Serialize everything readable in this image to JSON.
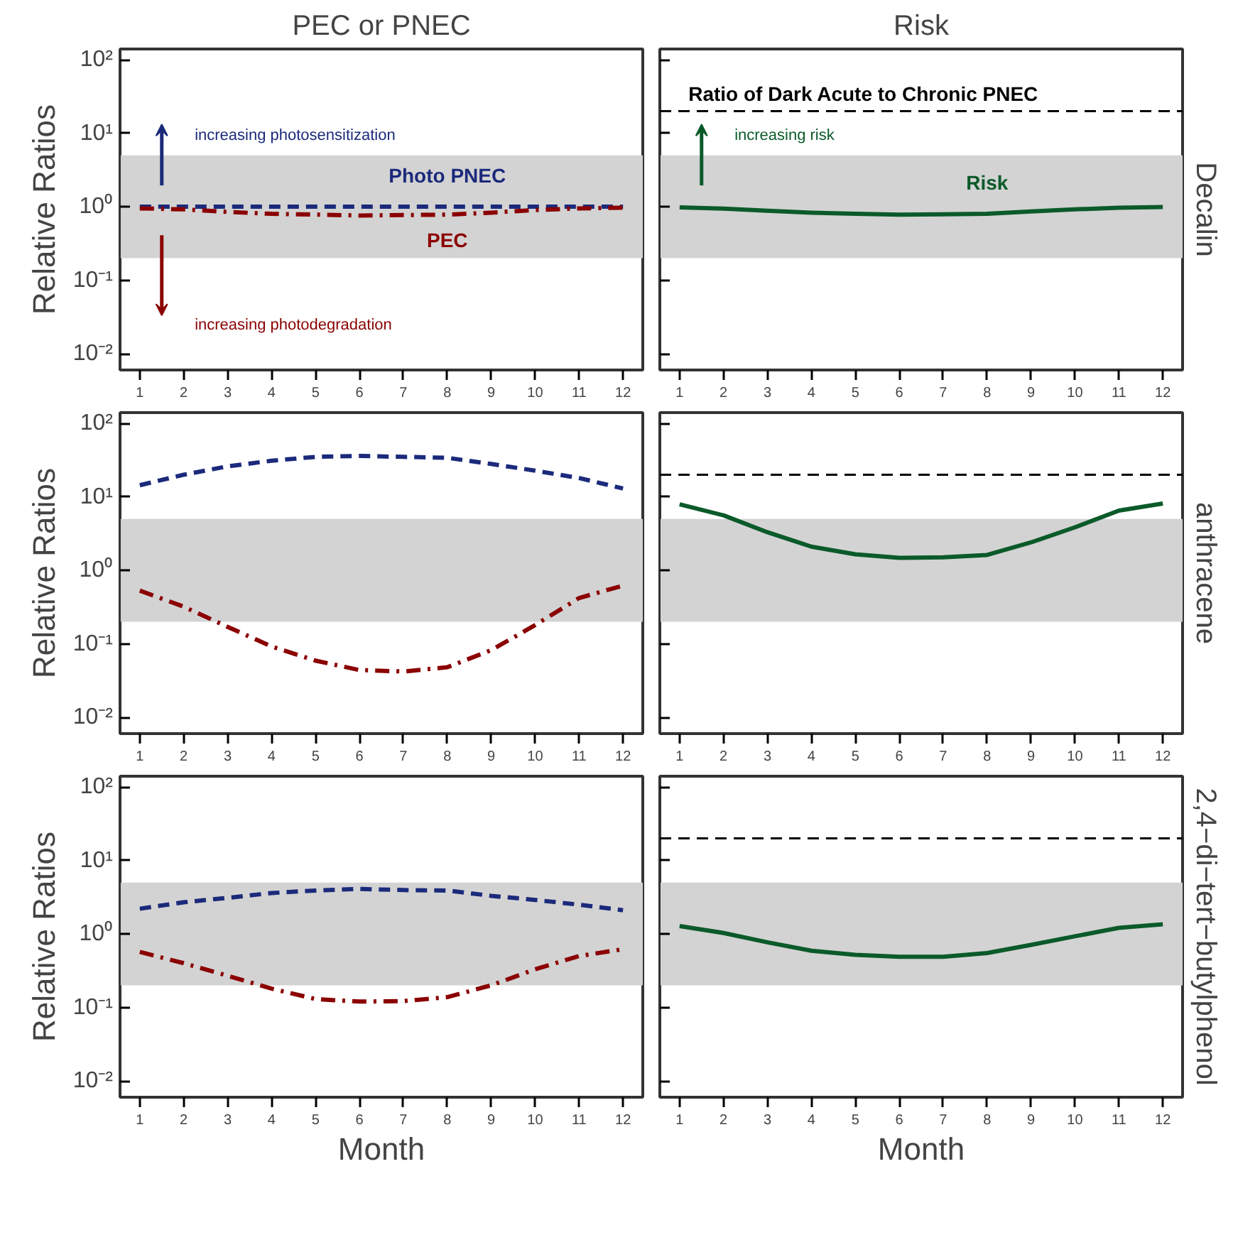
{
  "chart_data": [
    {
      "type": "line",
      "title": "PEC or PNEC",
      "ylabel": "Relative Ratios",
      "x": [
        1,
        2,
        3,
        4,
        5,
        6,
        7,
        8,
        9,
        10,
        11,
        12
      ],
      "log": "y",
      "xlim": [
        0.55,
        12.45
      ],
      "xticks": [
        1,
        2,
        3,
        4,
        5,
        6,
        7,
        8,
        9,
        10,
        11,
        12
      ],
      "ylim": [
        0.006,
        140
      ],
      "yticks": [
        {
          "value": 0.01,
          "label": "10⁻²"
        },
        {
          "value": 0.1,
          "label": "10⁻¹"
        },
        {
          "value": 1,
          "label": "10⁰"
        },
        {
          "value": 10,
          "label": "10¹"
        },
        {
          "value": 100,
          "label": "10²"
        }
      ],
      "bands": [
        {
          "axis": "y",
          "from": 0.2,
          "to": 5,
          "color": "#d3d3d3"
        }
      ],
      "annotations": [
        "increasing photosensitization",
        "increasing photodegradation"
      ],
      "series": [
        {
          "name": "Photo PNEC",
          "color": "#1b2a7b",
          "line_style": "dashed",
          "values": [
            1.0,
            1.0,
            1.0,
            1.0,
            1.0,
            1.0,
            1.0,
            1.0,
            1.0,
            1.0,
            1.0,
            1.0
          ]
        },
        {
          "name": "PEC",
          "color": "#8b0000",
          "line_style": "dashdot",
          "values": [
            0.95,
            0.92,
            0.85,
            0.8,
            0.78,
            0.76,
            0.77,
            0.78,
            0.83,
            0.9,
            0.95,
            0.97
          ]
        }
      ]
    },
    {
      "type": "line",
      "title": "Risk",
      "y2label": "Decalin",
      "x": [
        1,
        2,
        3,
        4,
        5,
        6,
        7,
        8,
        9,
        10,
        11,
        12
      ],
      "log": "y",
      "tick_labels": "x",
      "xlim": [
        0.55,
        12.45
      ],
      "xticks": [
        1,
        2,
        3,
        4,
        5,
        6,
        7,
        8,
        9,
        10,
        11,
        12
      ],
      "ylim": [
        0.006,
        140
      ],
      "yticks": [
        0.01,
        0.1,
        1,
        10,
        100
      ],
      "bands": [
        {
          "axis": "y",
          "from": 0.2,
          "to": 5,
          "color": "#d3d3d3"
        }
      ],
      "ref_lines": [
        {
          "axis": "y",
          "value": 20,
          "label": "Ratio of Dark Acute to Chronic PNEC",
          "color": "#000000",
          "line_style": "dashed"
        }
      ],
      "annotations": [
        "increasing risk"
      ],
      "series": [
        {
          "name": "Risk",
          "color": "#0b5a2a",
          "line_style": "solid",
          "values": [
            0.98,
            0.94,
            0.88,
            0.83,
            0.8,
            0.78,
            0.79,
            0.8,
            0.86,
            0.92,
            0.97,
            0.99
          ]
        }
      ]
    },
    {
      "type": "line",
      "ylabel": "Relative Ratios",
      "x": [
        1,
        2,
        3,
        4,
        5,
        6,
        7,
        8,
        9,
        10,
        11,
        12
      ],
      "log": "y",
      "xlim": [
        0.55,
        12.45
      ],
      "xticks": [
        1,
        2,
        3,
        4,
        5,
        6,
        7,
        8,
        9,
        10,
        11,
        12
      ],
      "ylim": [
        0.006,
        140
      ],
      "yticks": [
        {
          "value": 0.01,
          "label": "10⁻²"
        },
        {
          "value": 0.1,
          "label": "10⁻¹"
        },
        {
          "value": 1,
          "label": "10⁰"
        },
        {
          "value": 10,
          "label": "10¹"
        },
        {
          "value": 100,
          "label": "10²"
        }
      ],
      "bands": [
        {
          "axis": "y",
          "from": 0.2,
          "to": 5,
          "color": "#d3d3d3"
        }
      ],
      "series": [
        {
          "color": "#1b2a7b",
          "line_style": "dashed",
          "values": [
            14.4,
            20,
            26,
            31,
            35,
            36,
            35,
            34,
            28,
            22.7,
            18,
            13
          ]
        },
        {
          "color": "#8b0000",
          "line_style": "dashdot",
          "values": [
            0.53,
            0.32,
            0.17,
            0.092,
            0.059,
            0.044,
            0.042,
            0.048,
            0.082,
            0.18,
            0.42,
            0.62
          ]
        }
      ]
    },
    {
      "type": "line",
      "y2label": "anthracene",
      "x": [
        1,
        2,
        3,
        4,
        5,
        6,
        7,
        8,
        9,
        10,
        11,
        12
      ],
      "log": "y",
      "tick_labels": "x",
      "xlim": [
        0.55,
        12.45
      ],
      "xticks": [
        1,
        2,
        3,
        4,
        5,
        6,
        7,
        8,
        9,
        10,
        11,
        12
      ],
      "ylim": [
        0.006,
        140
      ],
      "yticks": [
        0.01,
        0.1,
        1,
        10,
        100
      ],
      "bands": [
        {
          "axis": "y",
          "from": 0.2,
          "to": 5,
          "color": "#d3d3d3"
        }
      ],
      "ref_lines": [
        {
          "axis": "y",
          "value": 20,
          "color": "#000000",
          "line_style": "dashed"
        }
      ],
      "series": [
        {
          "color": "#0b5a2a",
          "line_style": "solid",
          "values": [
            7.9,
            5.6,
            3.3,
            2.1,
            1.65,
            1.48,
            1.5,
            1.62,
            2.4,
            3.85,
            6.5,
            8.1
          ]
        }
      ]
    },
    {
      "type": "line",
      "ylabel": "Relative Ratios",
      "xlabel": "Month",
      "x": [
        1,
        2,
        3,
        4,
        5,
        6,
        7,
        8,
        9,
        10,
        11,
        12
      ],
      "log": "y",
      "xlim": [
        0.55,
        12.45
      ],
      "xticks": [
        1,
        2,
        3,
        4,
        5,
        6,
        7,
        8,
        9,
        10,
        11,
        12
      ],
      "ylim": [
        0.006,
        140
      ],
      "yticks": [
        {
          "value": 0.01,
          "label": "10⁻²"
        },
        {
          "value": 0.1,
          "label": "10⁻¹"
        },
        {
          "value": 1,
          "label": "10⁰"
        },
        {
          "value": 10,
          "label": "10¹"
        },
        {
          "value": 100,
          "label": "10²"
        }
      ],
      "bands": [
        {
          "axis": "y",
          "from": 0.2,
          "to": 5,
          "color": "#d3d3d3"
        }
      ],
      "series": [
        {
          "color": "#1b2a7b",
          "line_style": "dashed",
          "values": [
            2.2,
            2.7,
            3.1,
            3.6,
            3.9,
            4.1,
            3.95,
            3.9,
            3.3,
            2.9,
            2.5,
            2.1
          ]
        },
        {
          "color": "#8b0000",
          "line_style": "dashdot",
          "values": [
            0.57,
            0.4,
            0.27,
            0.18,
            0.13,
            0.12,
            0.122,
            0.138,
            0.2,
            0.33,
            0.5,
            0.62
          ]
        }
      ]
    },
    {
      "type": "line",
      "xlabel": "Month",
      "y2label": "2,4−di−tert−butylphenol",
      "x": [
        1,
        2,
        3,
        4,
        5,
        6,
        7,
        8,
        9,
        10,
        11,
        12
      ],
      "log": "y",
      "tick_labels": "x",
      "xlim": [
        0.55,
        12.45
      ],
      "xticks": [
        1,
        2,
        3,
        4,
        5,
        6,
        7,
        8,
        9,
        10,
        11,
        12
      ],
      "ylim": [
        0.006,
        140
      ],
      "yticks": [
        0.01,
        0.1,
        1,
        10,
        100
      ],
      "bands": [
        {
          "axis": "y",
          "from": 0.2,
          "to": 5,
          "color": "#d3d3d3"
        }
      ],
      "ref_lines": [
        {
          "axis": "y",
          "value": 20,
          "color": "#000000",
          "line_style": "dashed"
        }
      ],
      "series": [
        {
          "color": "#0b5a2a",
          "line_style": "solid",
          "values": [
            1.28,
            1.03,
            0.77,
            0.59,
            0.52,
            0.49,
            0.49,
            0.55,
            0.71,
            0.93,
            1.21,
            1.35
          ]
        }
      ]
    }
  ]
}
